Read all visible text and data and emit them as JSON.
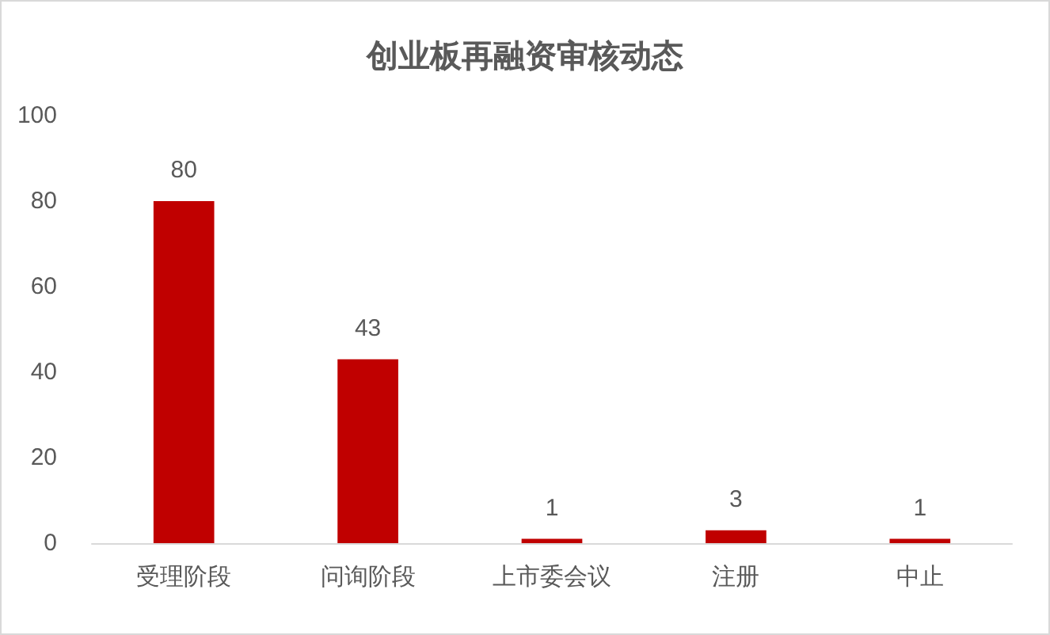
{
  "chart_data": {
    "type": "bar",
    "title": "创业板再融资审核动态",
    "categories": [
      "受理阶段",
      "问询阶段",
      "上市委会议",
      "注册",
      "中止"
    ],
    "values": [
      80,
      43,
      1,
      3,
      1
    ],
    "color": "#c00000",
    "ylim": [
      0,
      100
    ],
    "yticks": [
      0,
      20,
      40,
      60,
      80,
      100
    ],
    "grid": false,
    "data_labels": true
  }
}
